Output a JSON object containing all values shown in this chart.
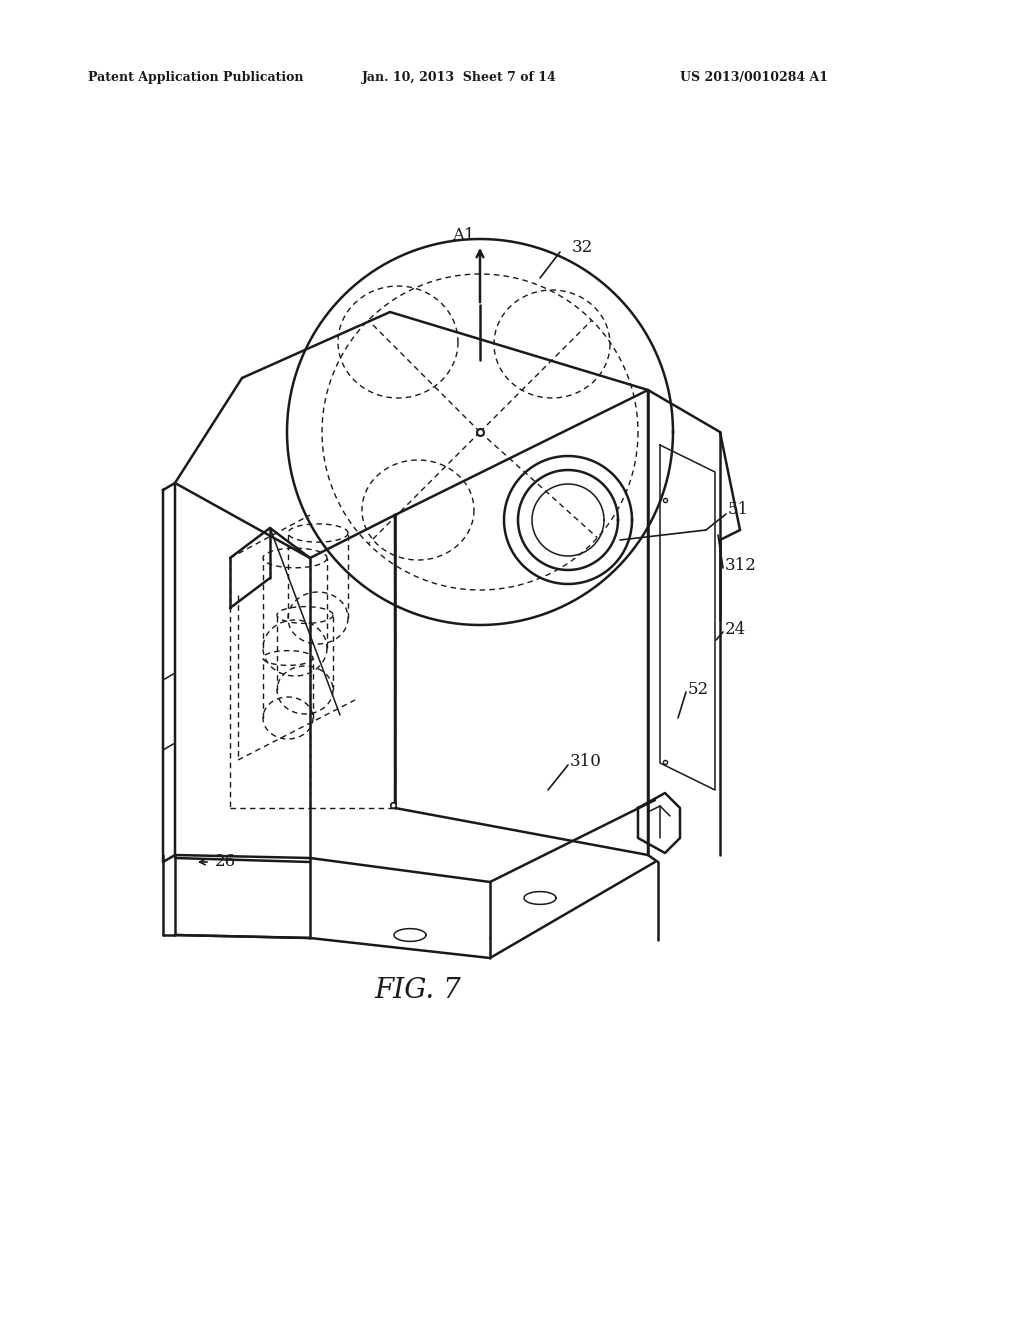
{
  "background_color": "#ffffff",
  "header_left": "Patent Application Publication",
  "header_center": "Jan. 10, 2013  Sheet 7 of 14",
  "header_right": "US 2013/0010284 A1",
  "figure_label": "FIG. 7",
  "color": "#1a1a1a",
  "lw_main": 1.8,
  "lw_thin": 1.1,
  "lw_dash": 1.0,
  "dash": [
    4,
    3
  ]
}
